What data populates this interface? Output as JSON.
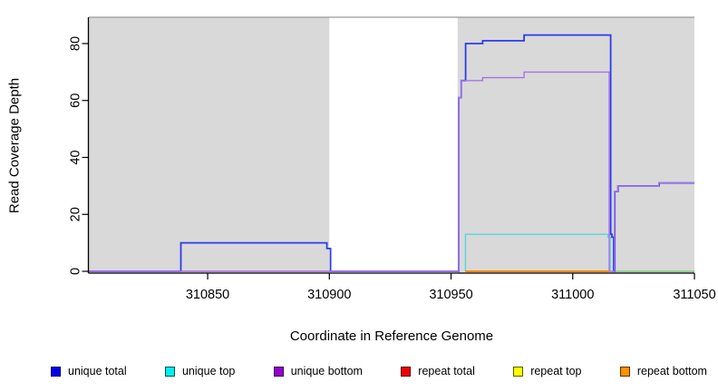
{
  "chart_data": {
    "type": "line",
    "title": "",
    "xlabel": "Coordinate in Reference Genome",
    "ylabel": "Read Coverage Depth",
    "xlim": [
      310801,
      311050
    ],
    "ylim": [
      0,
      89
    ],
    "x_ticks": [
      310850,
      310900,
      310950,
      311000,
      311050
    ],
    "y_ticks": [
      0,
      20,
      40,
      60,
      80
    ],
    "grid": false,
    "legend_position": "bottom",
    "plot_bg_color": "#d9d9d9",
    "bg_regions": [
      {
        "x0": 310801,
        "x1": 310900,
        "color": "#d9d9d9"
      },
      {
        "x0": 310952.7,
        "x1": 311050,
        "color": "#d9d9d9"
      }
    ],
    "gap_region": {
      "x0": 310900,
      "x1": 310952.7,
      "color": "#ffffff"
    },
    "series": [
      {
        "name": "unique total",
        "color": "#2b3cee",
        "width": 1.8,
        "points": [
          [
            310801,
            0
          ],
          [
            310839,
            0
          ],
          [
            310839,
            10
          ],
          [
            310899,
            10
          ],
          [
            310899,
            8
          ],
          [
            310900.5,
            8
          ],
          [
            310900.5,
            0
          ],
          [
            310953.2,
            0
          ],
          [
            310953.2,
            61
          ],
          [
            310954.2,
            61
          ],
          [
            310954.2,
            67
          ],
          [
            310956,
            67
          ],
          [
            310956,
            80
          ],
          [
            310963,
            80
          ],
          [
            310963,
            81
          ],
          [
            310980,
            81
          ],
          [
            310980,
            83
          ],
          [
            311015.6,
            83
          ],
          [
            311015.6,
            13
          ],
          [
            311016.1,
            13
          ],
          [
            311016.1,
            12
          ],
          [
            311016.8,
            12
          ],
          [
            311016.8,
            0
          ],
          [
            311017.3,
            0
          ],
          [
            311017.3,
            28
          ],
          [
            311018.6,
            28
          ],
          [
            311018.6,
            30
          ],
          [
            311035.5,
            30
          ],
          [
            311035.5,
            31
          ],
          [
            311050,
            31
          ]
        ]
      },
      {
        "name": "unique top",
        "color": "#5ed7d7",
        "width": 1.5,
        "points": [
          [
            310955.9,
            0
          ],
          [
            310955.9,
            13
          ],
          [
            311014.5,
            13
          ],
          [
            311014.5,
            12
          ],
          [
            311015.4,
            12
          ],
          [
            311015.4,
            0
          ]
        ]
      },
      {
        "name": "repeat total",
        "color": "#e8475f",
        "width": 1.3,
        "points": [
          [
            310839,
            0
          ],
          [
            310900.5,
            0
          ]
        ]
      },
      {
        "name": "unique bottom",
        "color": "#a873e8",
        "width": 1.4,
        "points": [
          [
            310801,
            0
          ],
          [
            310953.2,
            0
          ],
          [
            310953.2,
            61
          ],
          [
            310954.2,
            61
          ],
          [
            310954.2,
            67
          ],
          [
            310963,
            67
          ],
          [
            310963,
            68
          ],
          [
            310980,
            68
          ],
          [
            310980,
            70
          ],
          [
            311015,
            70
          ],
          [
            311015,
            0
          ],
          [
            311017.2,
            0
          ],
          [
            311017.2,
            28
          ],
          [
            311018.5,
            28
          ],
          [
            311018.5,
            30
          ],
          [
            311035.4,
            30
          ],
          [
            311035.4,
            31
          ],
          [
            311050,
            31
          ]
        ]
      },
      {
        "name": "repeat top",
        "color": "#7ccd7c",
        "width": 1.6,
        "points": [
          [
            311017.6,
            0
          ],
          [
            311050,
            0
          ]
        ]
      },
      {
        "name": "repeat bottom",
        "color": "#ff8c00",
        "width": 1.9,
        "points": [
          [
            310955.9,
            0
          ],
          [
            311015,
            0
          ]
        ]
      }
    ]
  },
  "legend": {
    "items": [
      {
        "label": "unique total",
        "swatch_color": "#0000ee"
      },
      {
        "label": "unique top",
        "swatch_color": "#00eeee"
      },
      {
        "label": "unique bottom",
        "swatch_color": "#9400d3"
      },
      {
        "label": "repeat total",
        "swatch_color": "#ee0000"
      },
      {
        "label": "repeat top",
        "swatch_color": "#ffff00"
      },
      {
        "label": "repeat bottom",
        "swatch_color": "#ff9100"
      }
    ]
  }
}
